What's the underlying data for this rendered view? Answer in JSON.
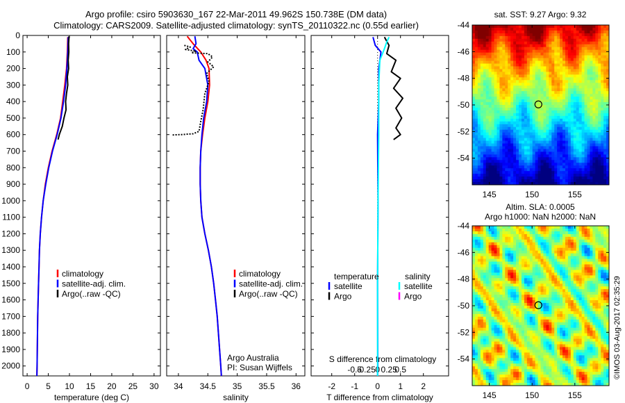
{
  "header": {
    "line1": "Argo profile: csiro 5903630_167 22-Mar-2011 49.962S 150.738E (DM data)",
    "line2": "Climatology: CARS2009. Satellite-adjusted climatology: synTS_20110322.nc (0.55d earlier)"
  },
  "colors": {
    "climatology": "#ff0000",
    "satellite": "#0000ff",
    "argo": "#000000",
    "sal_satellite": "#00ffff",
    "sal_argo": "#ff00ff"
  },
  "depth_axis": {
    "ticks": [
      0,
      100,
      200,
      300,
      400,
      500,
      600,
      700,
      800,
      900,
      1000,
      1100,
      1200,
      1300,
      1400,
      1500,
      1600,
      1700,
      1800,
      1900,
      2000
    ],
    "range": [
      0,
      2060
    ]
  },
  "chart_data": [
    {
      "id": "temperature",
      "type": "line",
      "xlabel": "temperature (deg C)",
      "ylabel": "",
      "xlim": [
        -1,
        31.5
      ],
      "ylim": [
        2060,
        0
      ],
      "xticks": [
        0,
        5,
        10,
        15,
        20,
        25,
        30
      ],
      "grid": false,
      "legend_position": "middle-center",
      "legend": [
        "climatology",
        "satellite-adj. clim.",
        "Argo(..raw -QC)"
      ],
      "series": [
        {
          "name": "climatology",
          "color": "#ff0000",
          "points": [
            [
              9.6,
              10
            ],
            [
              9.5,
              100
            ],
            [
              9.3,
              200
            ],
            [
              8.9,
              300
            ],
            [
              8.4,
              400
            ],
            [
              7.9,
              500
            ],
            [
              7.0,
              600
            ],
            [
              5.9,
              700
            ],
            [
              5.0,
              800
            ],
            [
              4.3,
              900
            ],
            [
              3.8,
              1000
            ],
            [
              3.4,
              1100
            ],
            [
              3.1,
              1200
            ],
            [
              2.9,
              1300
            ],
            [
              2.8,
              1400
            ],
            [
              2.7,
              1500
            ],
            [
              2.6,
              1600
            ],
            [
              2.5,
              1700
            ],
            [
              2.45,
              1800
            ],
            [
              2.4,
              1900
            ],
            [
              2.35,
              2000
            ],
            [
              2.3,
              2060
            ]
          ]
        },
        {
          "name": "satellite-adj. clim.",
          "color": "#0000ff",
          "points": [
            [
              9.7,
              10
            ],
            [
              9.6,
              100
            ],
            [
              9.4,
              200
            ],
            [
              9.1,
              300
            ],
            [
              8.6,
              400
            ],
            [
              8.0,
              500
            ],
            [
              7.1,
              600
            ],
            [
              6.0,
              700
            ],
            [
              5.1,
              800
            ],
            [
              4.4,
              900
            ],
            [
              3.8,
              1000
            ],
            [
              3.4,
              1100
            ],
            [
              3.1,
              1200
            ],
            [
              2.9,
              1300
            ],
            [
              2.8,
              1400
            ],
            [
              2.7,
              1500
            ],
            [
              2.6,
              1600
            ],
            [
              2.5,
              1700
            ],
            [
              2.45,
              1800
            ],
            [
              2.4,
              1900
            ],
            [
              2.35,
              2000
            ],
            [
              2.3,
              2060
            ]
          ]
        },
        {
          "name": "Argo(..raw -QC)",
          "color": "#000000",
          "points": [
            [
              9.9,
              5
            ],
            [
              9.8,
              50
            ],
            [
              9.85,
              100
            ],
            [
              9.7,
              150
            ],
            [
              9.8,
              200
            ],
            [
              9.5,
              250
            ],
            [
              9.6,
              300
            ],
            [
              9.3,
              350
            ],
            [
              9.1,
              400
            ],
            [
              9.2,
              450
            ],
            [
              8.7,
              500
            ],
            [
              8.3,
              550
            ],
            [
              7.6,
              600
            ],
            [
              7.3,
              630
            ]
          ]
        }
      ]
    },
    {
      "id": "salinity",
      "type": "line",
      "xlabel": "salinity",
      "ylabel": "",
      "xlim": [
        33.8,
        36.15
      ],
      "ylim": [
        2060,
        0
      ],
      "xticks": [
        34,
        34.5,
        35,
        35.5,
        36
      ],
      "grid": false,
      "legend_position": "middle-center",
      "legend": [
        "climatology",
        "satellite-adj. clim.",
        "Argo(..raw -QC)"
      ],
      "series": [
        {
          "name": "climatology",
          "color": "#ff0000",
          "points": [
            [
              34.15,
              5
            ],
            [
              34.25,
              50
            ],
            [
              34.38,
              100
            ],
            [
              34.47,
              150
            ],
            [
              34.52,
              200
            ],
            [
              34.53,
              300
            ],
            [
              34.5,
              400
            ],
            [
              34.45,
              500
            ],
            [
              34.41,
              600
            ],
            [
              34.38,
              700
            ],
            [
              34.37,
              800
            ],
            [
              34.37,
              900
            ],
            [
              34.38,
              1000
            ],
            [
              34.4,
              1100
            ],
            [
              34.45,
              1200
            ],
            [
              34.51,
              1300
            ],
            [
              34.56,
              1400
            ],
            [
              34.6,
              1500
            ],
            [
              34.63,
              1600
            ],
            [
              34.66,
              1700
            ],
            [
              34.68,
              1800
            ],
            [
              34.7,
              1900
            ],
            [
              34.72,
              2000
            ],
            [
              34.73,
              2060
            ]
          ]
        },
        {
          "name": "satellite-adj. clim.",
          "color": "#0000ff",
          "points": [
            [
              34.28,
              5
            ],
            [
              34.3,
              50
            ],
            [
              34.25,
              80
            ],
            [
              34.32,
              100
            ],
            [
              34.35,
              150
            ],
            [
              34.45,
              200
            ],
            [
              34.5,
              300
            ],
            [
              34.48,
              400
            ],
            [
              34.43,
              500
            ],
            [
              34.4,
              600
            ],
            [
              34.38,
              700
            ],
            [
              34.37,
              800
            ],
            [
              34.37,
              900
            ],
            [
              34.38,
              1000
            ],
            [
              34.4,
              1100
            ],
            [
              34.45,
              1200
            ],
            [
              34.51,
              1300
            ],
            [
              34.56,
              1400
            ],
            [
              34.6,
              1500
            ],
            [
              34.63,
              1600
            ],
            [
              34.66,
              1700
            ],
            [
              34.68,
              1800
            ],
            [
              34.7,
              1900
            ],
            [
              34.72,
              2000
            ],
            [
              34.73,
              2060
            ]
          ]
        },
        {
          "name": "Argo(..raw -QC)",
          "color": "#000000",
          "dotted": true,
          "points": [
            [
              34.1,
              60
            ],
            [
              34.2,
              70
            ],
            [
              34.12,
              85
            ],
            [
              34.3,
              95
            ],
            [
              34.22,
              105
            ],
            [
              34.5,
              110
            ],
            [
              34.58,
              130
            ],
            [
              34.5,
              160
            ],
            [
              34.6,
              190
            ],
            [
              34.48,
              230
            ],
            [
              34.52,
              280
            ],
            [
              34.45,
              350
            ],
            [
              34.42,
              450
            ],
            [
              34.38,
              520
            ],
            [
              34.35,
              580
            ],
            [
              34.25,
              595
            ],
            [
              34.05,
              600
            ],
            [
              33.9,
              602
            ]
          ]
        }
      ]
    },
    {
      "id": "difference",
      "type": "line",
      "xlabel": "T difference from climatology",
      "xlabel_top": "S difference from climatology",
      "ylabel": "",
      "xlim": [
        -2.9,
        3.1
      ],
      "ylim": [
        2060,
        0
      ],
      "xticks": [
        -2,
        -1,
        0,
        1,
        2
      ],
      "xticklabels": [
        "-2",
        "-1",
        "0",
        "1",
        "2"
      ],
      "xticks_top": [
        -1,
        -0.5,
        0,
        0.5,
        1
      ],
      "xticklabels_top": [
        "-0.5",
        "-0.25",
        "0",
        "0.25",
        "0.5"
      ],
      "grid": false,
      "legend_position": "middle-center",
      "legend_headers": [
        "temperature",
        "salinity"
      ],
      "legend_left": [
        "satellite",
        "Argo"
      ],
      "legend_right": [
        "satellite",
        "Argo"
      ],
      "series": [
        {
          "name": "satellite",
          "group": "temperature",
          "color": "#0000ff",
          "points": [
            [
              -0.2,
              10
            ],
            [
              -0.1,
              60
            ],
            [
              0.15,
              100
            ],
            [
              0.05,
              200
            ],
            [
              0.05,
              400
            ],
            [
              0.0,
              600
            ],
            [
              0.02,
              1000
            ],
            [
              0.0,
              1500
            ],
            [
              0.01,
              2000
            ],
            [
              0.0,
              2060
            ]
          ]
        },
        {
          "name": "Argo",
          "group": "temperature",
          "color": "#000000",
          "points": [
            [
              0.3,
              10
            ],
            [
              0.5,
              60
            ],
            [
              0.4,
              110
            ],
            [
              0.8,
              150
            ],
            [
              0.6,
              220
            ],
            [
              1.0,
              260
            ],
            [
              0.7,
              320
            ],
            [
              1.1,
              380
            ],
            [
              0.8,
              440
            ],
            [
              1.05,
              500
            ],
            [
              0.8,
              560
            ],
            [
              1.0,
              600
            ],
            [
              0.7,
              630
            ]
          ]
        },
        {
          "name": "satellite",
          "group": "salinity",
          "color": "#00ffff",
          "points": [
            [
              0.5,
              10
            ],
            [
              0.4,
              40
            ],
            [
              0.3,
              80
            ],
            [
              0.1,
              150
            ],
            [
              0.05,
              300
            ],
            [
              0.05,
              600
            ],
            [
              0.02,
              1000
            ],
            [
              0.0,
              1500
            ],
            [
              0.0,
              2060
            ]
          ]
        }
      ]
    },
    {
      "id": "sst_map",
      "type": "heatmap",
      "title": "sat. SST: 9.27 Argo: 9.32",
      "xlim": [
        143,
        159
      ],
      "ylim": [
        -56,
        -44
      ],
      "xticks": [
        145,
        150,
        155
      ],
      "yticks": [
        -44,
        -46,
        -48,
        -50,
        -52,
        -54
      ],
      "marker": {
        "lon": 150.738,
        "lat": -49.962
      }
    },
    {
      "id": "sla_map",
      "type": "heatmap",
      "title": "Altim. SLA: 0.0005",
      "title_line2": "Argo h1000: NaN h2000: NaN",
      "xlim": [
        143,
        159
      ],
      "ylim": [
        -56,
        -44
      ],
      "xticks": [
        145,
        150,
        155
      ],
      "yticks": [
        -44,
        -46,
        -48,
        -50,
        -52,
        -54
      ],
      "marker": {
        "lon": 150.738,
        "lat": -49.962
      }
    }
  ],
  "annotations": {
    "institution": "Argo Australia",
    "pi": "PI: Susan Wijffels",
    "credit": "©IMOS 03-Aug-2017 02:35:29"
  }
}
